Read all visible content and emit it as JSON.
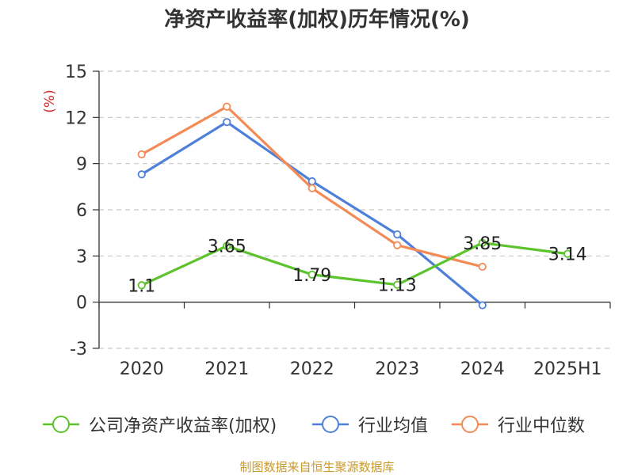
{
  "chart_data": {
    "type": "line",
    "title": "净资产收益率(加权)历年情况(%)",
    "ylabel": "(%)",
    "ylim": [
      -3,
      15
    ],
    "yticks": [
      -3,
      0,
      3,
      6,
      9,
      12,
      15
    ],
    "categories": [
      "2020",
      "2021",
      "2022",
      "2023",
      "2024",
      "2025H1"
    ],
    "grid": true,
    "legend_position": "bottom",
    "series": [
      {
        "name": "公司净资产收益率(加权)",
        "color": "#5cc32d",
        "values": [
          1.1,
          3.65,
          1.79,
          1.13,
          3.85,
          3.14
        ],
        "labels": [
          "1.1",
          "3.65",
          "1.79",
          "1.13",
          "3.85",
          "3.14"
        ]
      },
      {
        "name": "行业均值",
        "color": "#4f80d9",
        "values": [
          8.3,
          11.7,
          7.85,
          4.4,
          -0.2,
          null
        ]
      },
      {
        "name": "行业中位数",
        "color": "#f48b57",
        "values": [
          9.6,
          12.7,
          7.4,
          3.7,
          2.3,
          null
        ]
      }
    ]
  },
  "footer": {
    "source": "制图数据来自恒生聚源数据库"
  }
}
